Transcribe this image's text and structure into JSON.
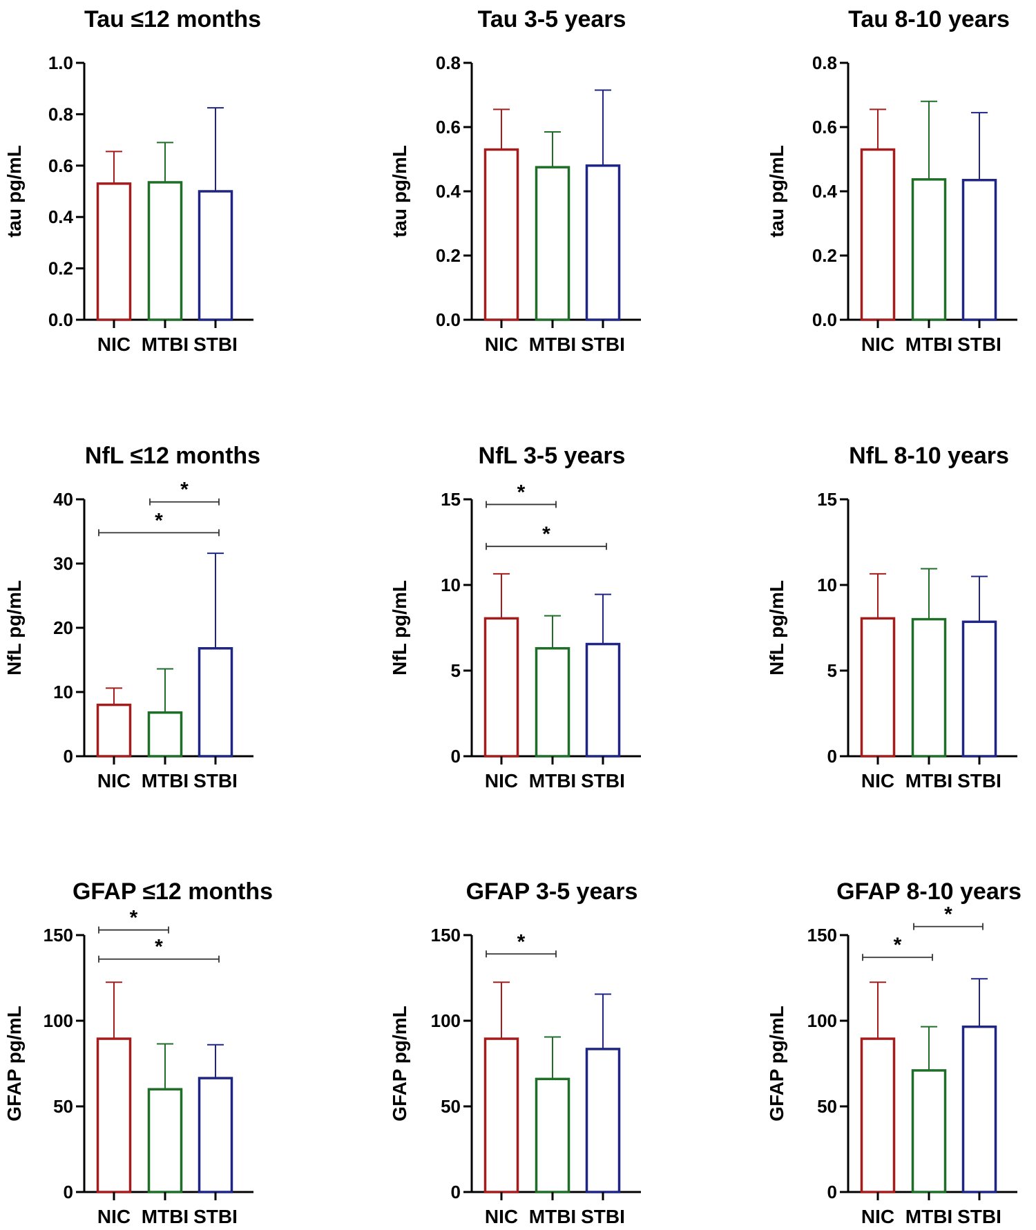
{
  "colors": {
    "NIC": "#a51c1c",
    "MTBI": "#1f6e28",
    "STBI": "#1e2585",
    "axis": "#000000",
    "bracket": "#333333"
  },
  "chart_data": [
    {
      "type": "bar",
      "title": "Tau ≤12 months",
      "ylabel": "tau pg/mL",
      "categories": [
        "NIC",
        "MTBI",
        "STBI"
      ],
      "values": [
        0.53,
        0.535,
        0.5
      ],
      "errors": [
        0.125,
        0.155,
        0.325
      ],
      "ylim": [
        0,
        1.0
      ],
      "yticks": [
        0.0,
        0.2,
        0.4,
        0.6,
        0.8,
        1.0
      ],
      "tick_decimals": 1,
      "significance": []
    },
    {
      "type": "bar",
      "title": "Tau 3-5 years",
      "ylabel": "tau pg/mL",
      "categories": [
        "NIC",
        "MTBI",
        "STBI"
      ],
      "values": [
        0.53,
        0.475,
        0.48
      ],
      "errors": [
        0.125,
        0.11,
        0.235
      ],
      "ylim": [
        0,
        0.8
      ],
      "yticks": [
        0.0,
        0.2,
        0.4,
        0.6,
        0.8
      ],
      "tick_decimals": 1,
      "significance": []
    },
    {
      "type": "bar",
      "title": "Tau 8-10 years",
      "ylabel": "tau pg/mL",
      "categories": [
        "NIC",
        "MTBI",
        "STBI"
      ],
      "values": [
        0.53,
        0.437,
        0.435
      ],
      "errors": [
        0.125,
        0.243,
        0.21
      ],
      "ylim": [
        0,
        0.8
      ],
      "yticks": [
        0.0,
        0.2,
        0.4,
        0.6,
        0.8
      ],
      "tick_decimals": 1,
      "significance": []
    },
    {
      "type": "bar",
      "title": "NfL ≤12 months",
      "ylabel": "NfL pg/mL",
      "categories": [
        "NIC",
        "MTBI",
        "STBI"
      ],
      "values": [
        8.0,
        6.8,
        16.8
      ],
      "errors": [
        2.6,
        6.8,
        14.8
      ],
      "ylim": [
        0,
        40
      ],
      "yticks": [
        0,
        10,
        20,
        30,
        40
      ],
      "tick_decimals": 0,
      "significance": [
        {
          "from": 1,
          "to": 2,
          "y": 39.6,
          "label": "*"
        },
        {
          "from": 0,
          "to": 2,
          "y": 34.8,
          "label": "*"
        }
      ]
    },
    {
      "type": "bar",
      "title": "NfL 3-5 years",
      "ylabel": "NfL pg/mL",
      "categories": [
        "NIC",
        "MTBI",
        "STBI"
      ],
      "values": [
        8.05,
        6.3,
        6.55
      ],
      "errors": [
        2.6,
        1.9,
        2.9
      ],
      "ylim": [
        0,
        15
      ],
      "yticks": [
        0,
        5,
        10,
        15
      ],
      "tick_decimals": 0,
      "significance": [
        {
          "from": 0,
          "to": 1,
          "y": 14.7,
          "label": "*"
        },
        {
          "from": 0,
          "to": 2,
          "y": 12.25,
          "label": "*"
        }
      ]
    },
    {
      "type": "bar",
      "title": "NfL 8-10 years",
      "ylabel": "NfL pg/mL",
      "categories": [
        "NIC",
        "MTBI",
        "STBI"
      ],
      "values": [
        8.05,
        8.0,
        7.85
      ],
      "errors": [
        2.6,
        2.95,
        2.65
      ],
      "ylim": [
        0,
        15
      ],
      "yticks": [
        0,
        5,
        10,
        15
      ],
      "tick_decimals": 0,
      "significance": []
    },
    {
      "type": "bar",
      "title": "GFAP ≤12 months",
      "ylabel": "GFAP pg/mL",
      "categories": [
        "NIC",
        "MTBI",
        "STBI"
      ],
      "values": [
        89.5,
        60.0,
        66.5
      ],
      "errors": [
        33.0,
        26.5,
        19.5
      ],
      "ylim": [
        0,
        150
      ],
      "yticks": [
        0,
        50,
        100,
        150
      ],
      "tick_decimals": 0,
      "significance": [
        {
          "from": 0,
          "to": 1,
          "y": 153,
          "label": "*"
        },
        {
          "from": 0,
          "to": 2,
          "y": 136,
          "label": "*"
        }
      ]
    },
    {
      "type": "bar",
      "title": "GFAP 3-5 years",
      "ylabel": "GFAP pg/mL",
      "categories": [
        "NIC",
        "MTBI",
        "STBI"
      ],
      "values": [
        89.5,
        66.0,
        83.5
      ],
      "errors": [
        33.0,
        24.5,
        32.0
      ],
      "ylim": [
        0,
        150
      ],
      "yticks": [
        0,
        50,
        100,
        150
      ],
      "tick_decimals": 0,
      "significance": [
        {
          "from": 0,
          "to": 1,
          "y": 139,
          "label": "*"
        }
      ]
    },
    {
      "type": "bar",
      "title": "GFAP 8-10 years",
      "ylabel": "GFAP pg/mL",
      "categories": [
        "NIC",
        "MTBI",
        "STBI"
      ],
      "values": [
        89.5,
        71.0,
        96.5
      ],
      "errors": [
        33.0,
        25.5,
        28.0
      ],
      "ylim": [
        0,
        150
      ],
      "yticks": [
        0,
        50,
        100,
        150
      ],
      "tick_decimals": 0,
      "significance": [
        {
          "from": 0,
          "to": 1,
          "y": 137,
          "label": "*"
        },
        {
          "from": 1,
          "to": 2,
          "y": 155,
          "label": "*"
        }
      ]
    }
  ]
}
